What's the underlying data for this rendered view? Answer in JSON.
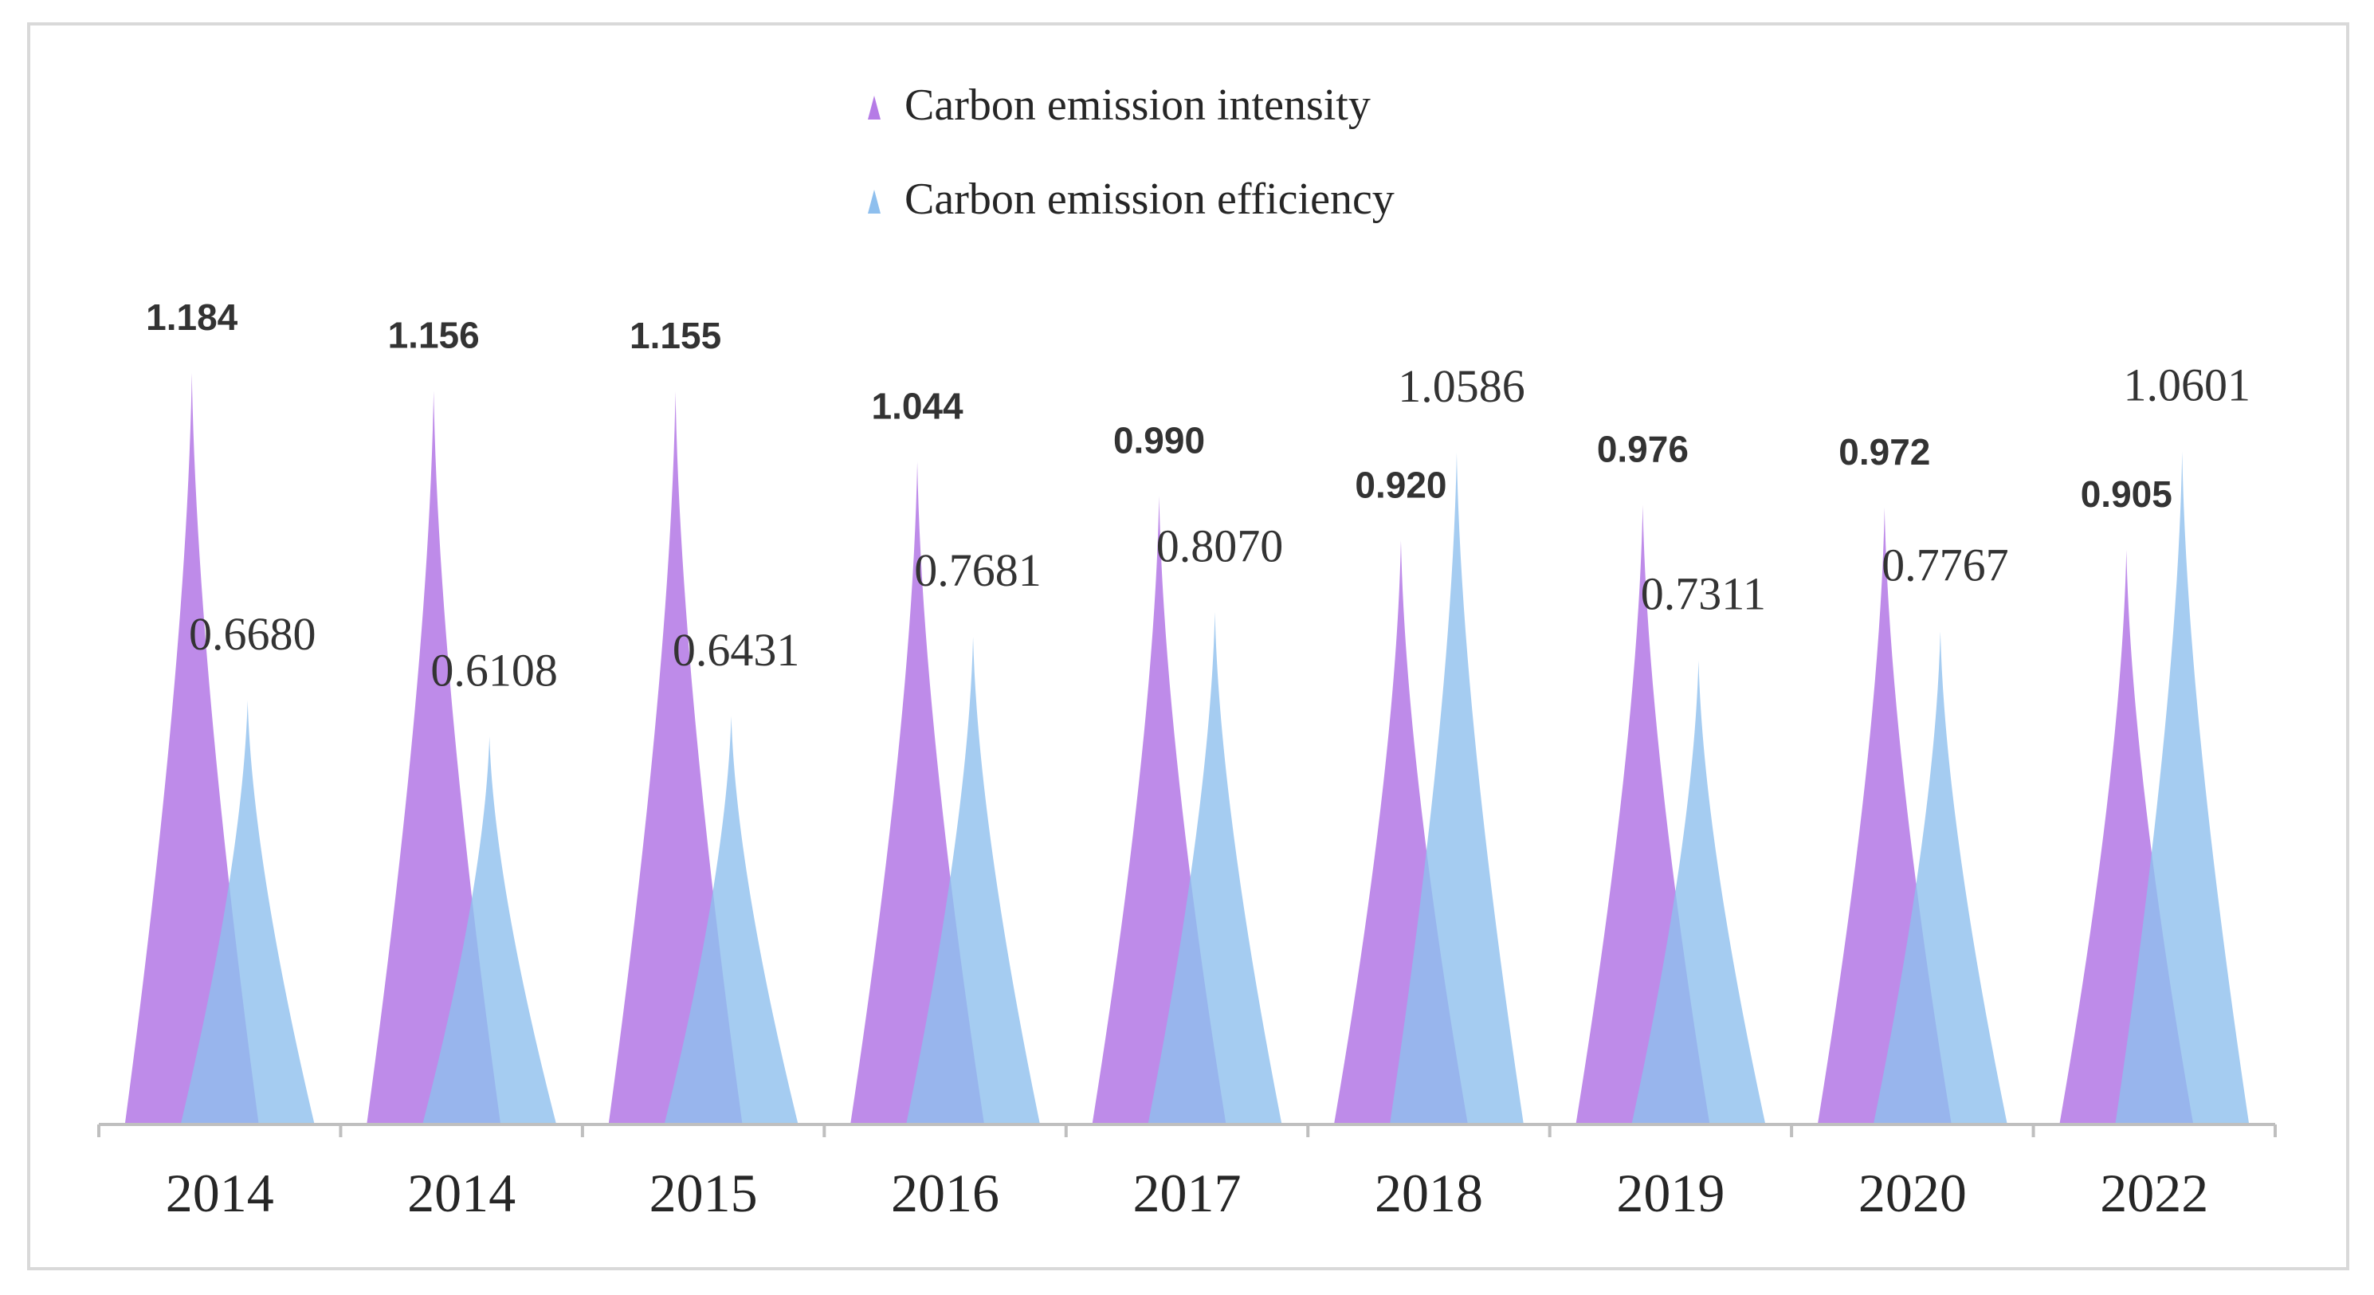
{
  "chart_data": {
    "type": "bar",
    "mark_style": "pointed-peak",
    "title": "",
    "xlabel": "",
    "ylabel": "",
    "ylim": [
      0,
      1.25
    ],
    "grid": false,
    "legend_position": "top-center",
    "categories": [
      "2014",
      "2014",
      "2015",
      "2016",
      "2017",
      "2018",
      "2019",
      "2020",
      "2022"
    ],
    "series": [
      {
        "name": "Carbon emission intensity",
        "color": "#b57be6",
        "values": [
          1.184,
          1.156,
          1.155,
          1.044,
          0.99,
          0.92,
          0.976,
          0.972,
          0.905
        ],
        "labels": [
          "1.184",
          "1.156",
          "1.155",
          "1.044",
          "0.990",
          "0.920",
          "0.976",
          "0.972",
          "0.905"
        ]
      },
      {
        "name": "Carbon emission efficiency",
        "color": "#8ebfee",
        "values": [
          0.668,
          0.6108,
          0.6431,
          0.7681,
          0.807,
          1.0586,
          0.7311,
          0.7767,
          1.0601
        ],
        "labels": [
          "0.6680",
          "0.6108",
          "0.6431",
          "0.7681",
          "0.8070",
          "1.0586",
          "0.7311",
          "0.7767",
          "1.0601"
        ]
      }
    ]
  }
}
